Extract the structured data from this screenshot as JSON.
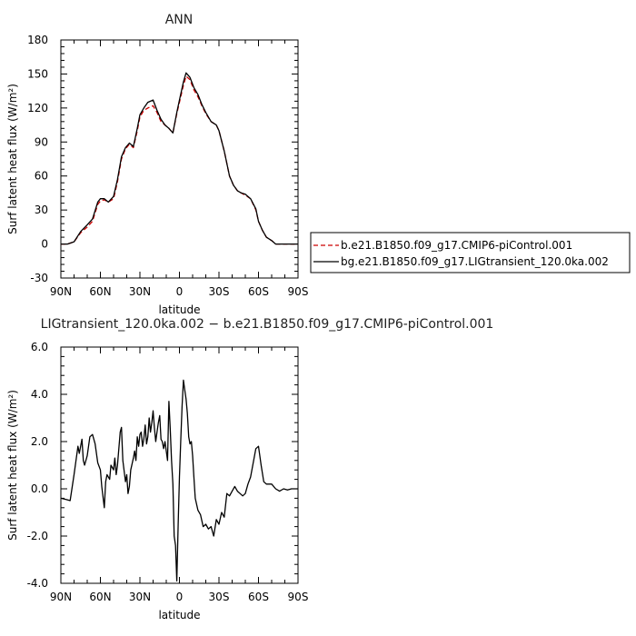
{
  "chart_data": [
    {
      "type": "line",
      "title": "ANN",
      "xlabel": "latitude",
      "ylabel": "Surf latent heat flux (W/m²)",
      "xlim": [
        90,
        -90
      ],
      "ylim": [
        -30,
        180
      ],
      "x_ticks": [
        90,
        60,
        30,
        0,
        -30,
        -60,
        -90
      ],
      "x_tick_labels": [
        "90N",
        "60N",
        "30N",
        "0",
        "30S",
        "60S",
        "90S"
      ],
      "y_ticks": [
        -30,
        0,
        30,
        60,
        90,
        120,
        150,
        180
      ],
      "y_tick_labels": [
        "-30",
        "0",
        "30",
        "60",
        "90",
        "120",
        "150",
        "180"
      ],
      "legend_position": "right",
      "series": [
        {
          "name": "b.e21.B1850.f09_g17.CMIP6-piControl.001",
          "color": "#cc0000",
          "style": "dashed",
          "x": [
            90,
            85,
            80,
            75,
            70,
            66,
            62,
            60,
            57,
            54,
            50,
            47,
            44,
            41,
            38,
            35,
            32,
            30,
            27,
            24,
            20,
            17,
            14,
            11,
            8,
            5,
            2,
            0,
            -3,
            -5,
            -8,
            -11,
            -14,
            -17,
            -20,
            -24,
            -28,
            -30,
            -34,
            -38,
            -41,
            -44,
            -47,
            -50,
            -54,
            -58,
            -60,
            -63,
            -66,
            -70,
            -73,
            -76,
            -80,
            -85,
            -90
          ],
          "y": [
            0,
            0,
            2,
            10,
            15,
            20,
            35,
            38,
            39,
            37,
            40,
            55,
            75,
            84,
            88,
            85,
            100,
            112,
            118,
            120,
            122,
            116,
            108,
            105,
            102,
            98,
            115,
            125,
            140,
            148,
            145,
            136,
            130,
            122,
            115,
            108,
            105,
            100,
            82,
            60,
            52,
            47,
            45,
            43,
            40,
            30,
            20,
            12,
            6,
            3,
            0,
            0,
            0,
            0,
            0
          ]
        },
        {
          "name": "bg.e21.B1850.f09_g17.LIGtransient_120.0ka.002",
          "color": "#000000",
          "style": "solid",
          "x": [
            90,
            85,
            80,
            75,
            70,
            66,
            62,
            60,
            57,
            54,
            50,
            47,
            44,
            41,
            38,
            35,
            32,
            30,
            27,
            24,
            20,
            17,
            14,
            11,
            8,
            5,
            2,
            0,
            -3,
            -5,
            -8,
            -11,
            -14,
            -17,
            -20,
            -24,
            -28,
            -30,
            -34,
            -38,
            -41,
            -44,
            -47,
            -50,
            -54,
            -58,
            -60,
            -63,
            -66,
            -70,
            -73,
            -76,
            -80,
            -85,
            -90
          ],
          "y": [
            0,
            0,
            2,
            11,
            17,
            22,
            37,
            40,
            40,
            37,
            42,
            57,
            77,
            85,
            89,
            86,
            102,
            114,
            120,
            125,
            127,
            118,
            110,
            105,
            102,
            98,
            116,
            127,
            143,
            151,
            147,
            138,
            132,
            123,
            116,
            108,
            105,
            100,
            82,
            60,
            52,
            47,
            45,
            44,
            40,
            31,
            20,
            12,
            6,
            3,
            0,
            0,
            0,
            0,
            0
          ]
        }
      ]
    },
    {
      "type": "line",
      "title": "LIGtransient_120.0ka.002 − b.e21.B1850.f09_g17.CMIP6-piControl.001",
      "xlabel": "latitude",
      "ylabel": "Surf latent heat flux (W/m²)",
      "xlim": [
        90,
        -90
      ],
      "ylim": [
        -4,
        6
      ],
      "x_ticks": [
        90,
        60,
        30,
        0,
        -30,
        -60,
        -90
      ],
      "x_tick_labels": [
        "90N",
        "60N",
        "30N",
        "0",
        "30S",
        "60S",
        "90S"
      ],
      "y_ticks": [
        -4,
        -2,
        0,
        2,
        4,
        6
      ],
      "y_tick_labels": [
        "-4.0",
        "-2.0",
        "0.0",
        "2.0",
        "4.0",
        "6.0"
      ],
      "series": [
        {
          "name": "",
          "color": "#000000",
          "style": "solid",
          "x": [
            90,
            86,
            83,
            80,
            77,
            76,
            74,
            73,
            72,
            70,
            68,
            66,
            64,
            62,
            60,
            59,
            57,
            56,
            55,
            53,
            52,
            50,
            49,
            48,
            47,
            45,
            44,
            43,
            41,
            40,
            39,
            38,
            37,
            35,
            34,
            33,
            32,
            31,
            30,
            29,
            28,
            27,
            26,
            25,
            24,
            23,
            22,
            21,
            20,
            19,
            18,
            17,
            16,
            15,
            14,
            13,
            12,
            11,
            10,
            9,
            8,
            7,
            6,
            5,
            4,
            3,
            2,
            1,
            0,
            -1,
            -2,
            -3,
            -4,
            -5,
            -6,
            -7,
            -8,
            -9,
            -10,
            -11,
            -12,
            -14,
            -16,
            -18,
            -20,
            -22,
            -24,
            -26,
            -28,
            -30,
            -32,
            -34,
            -36,
            -38,
            -40,
            -42,
            -44,
            -46,
            -48,
            -50,
            -52,
            -54,
            -56,
            -58,
            -60,
            -62,
            -64,
            -66,
            -68,
            -70,
            -73,
            -76,
            -79,
            -82,
            -85,
            -88,
            -90
          ],
          "y": [
            -0.4,
            -0.45,
            -0.5,
            0.6,
            1.8,
            1.5,
            2.1,
            1.2,
            1.0,
            1.4,
            2.2,
            2.3,
            1.9,
            1.1,
            0.8,
            0.1,
            -0.8,
            0.3,
            0.6,
            0.4,
            1.0,
            0.8,
            1.3,
            0.6,
            1.0,
            2.4,
            2.6,
            1.2,
            0.3,
            0.6,
            -0.2,
            0.1,
            0.8,
            1.3,
            1.6,
            1.2,
            2.2,
            1.8,
            2.3,
            2.4,
            1.8,
            2.1,
            2.7,
            1.9,
            2.2,
            3.0,
            2.4,
            2.8,
            3.3,
            2.6,
            2.0,
            2.4,
            2.8,
            3.1,
            2.1,
            2.0,
            1.7,
            2.0,
            1.6,
            1.2,
            3.7,
            2.5,
            1.2,
            0.2,
            -2.0,
            -2.4,
            -3.9,
            -1.5,
            0.5,
            2.0,
            3.5,
            4.6,
            4.2,
            3.8,
            3.2,
            2.2,
            1.9,
            2.0,
            1.4,
            0.5,
            -0.4,
            -0.9,
            -1.1,
            -1.6,
            -1.5,
            -1.7,
            -1.6,
            -2.0,
            -1.3,
            -1.5,
            -1.0,
            -1.2,
            -0.2,
            -0.3,
            -0.1,
            0.1,
            -0.1,
            -0.2,
            -0.3,
            -0.2,
            0.2,
            0.5,
            1.1,
            1.7,
            1.8,
            1.0,
            0.3,
            0.2,
            0.2,
            0.2,
            0.0,
            -0.1,
            0.0,
            -0.05,
            0.0,
            0.0,
            0.0
          ]
        }
      ]
    }
  ]
}
